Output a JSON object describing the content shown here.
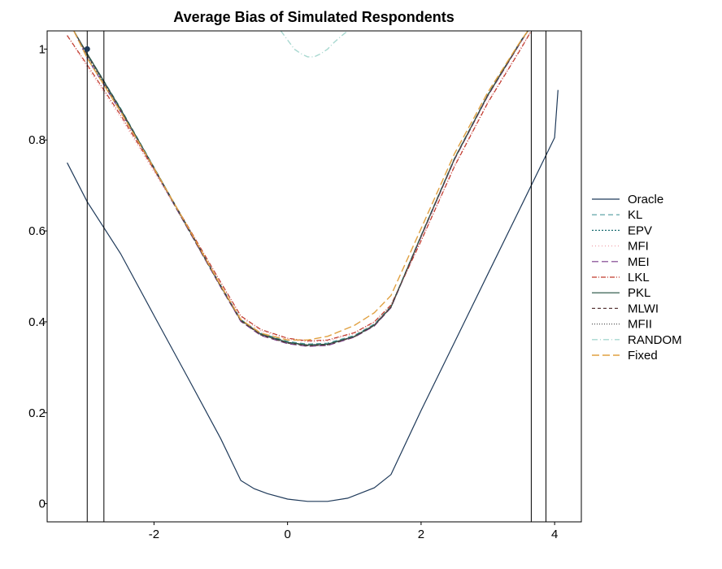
{
  "chart_data": {
    "type": "line",
    "title": "Average Bias of Simulated Respondents",
    "xlabel": "",
    "ylabel": "",
    "xlim": [
      -3.6,
      4.4
    ],
    "ylim": [
      -0.04,
      1.04
    ],
    "xticks": [
      {
        "value": -2,
        "label": "-2"
      },
      {
        "value": 0,
        "label": "0"
      },
      {
        "value": 2,
        "label": "2"
      },
      {
        "value": 4,
        "label": "4"
      }
    ],
    "yticks": [
      {
        "value": 0,
        "label": "0"
      },
      {
        "value": 0.2,
        "label": "0.2"
      },
      {
        "value": 0.4,
        "label": "0.4"
      },
      {
        "value": 0.6,
        "label": "0.6"
      },
      {
        "value": 0.8,
        "label": "0.8"
      },
      {
        "value": 1,
        "label": "1"
      }
    ],
    "grid": false,
    "legend_position": "right",
    "vlines": [
      -3.0,
      -2.75,
      3.65,
      3.87
    ],
    "marker": {
      "x": -3.0,
      "y": 1.0
    },
    "series": [
      {
        "name": "Oracle",
        "color": "#1f3a5a",
        "dash": "",
        "width": 1.2,
        "x": [
          -3.3,
          -3.0,
          -2.5,
          -2.0,
          -1.5,
          -1.0,
          -0.7,
          -0.5,
          -0.3,
          0.0,
          0.3,
          0.6,
          0.9,
          1.3,
          1.55,
          2.0,
          2.5,
          3.0,
          3.5,
          4.0,
          4.05
        ],
        "y": [
          0.75,
          0.664,
          0.55,
          0.414,
          0.279,
          0.143,
          0.051,
          0.033,
          0.022,
          0.01,
          0.005,
          0.005,
          0.012,
          0.035,
          0.064,
          0.205,
          0.355,
          0.505,
          0.655,
          0.805,
          0.91
        ]
      },
      {
        "name": "KL",
        "color": "#4f9a9e",
        "dash": "6,4",
        "width": 1.2,
        "x": [
          -3.2,
          -3.0,
          -2.5,
          -2.0,
          -1.5,
          -1.0,
          -0.7,
          -0.4,
          0.0,
          0.3,
          0.6,
          1.0,
          1.3,
          1.55,
          2.0,
          2.5,
          3.0,
          3.5,
          3.6
        ],
        "y": [
          1.04,
          0.99,
          0.87,
          0.74,
          0.61,
          0.48,
          0.405,
          0.375,
          0.357,
          0.351,
          0.353,
          0.37,
          0.395,
          0.434,
          0.59,
          0.76,
          0.9,
          1.02,
          1.04
        ]
      },
      {
        "name": "EPV",
        "color": "#1c6e73",
        "dash": "2,2",
        "width": 1.2,
        "x": [
          -3.2,
          -3.0,
          -2.5,
          -2.0,
          -1.5,
          -1.0,
          -0.7,
          -0.4,
          0.0,
          0.3,
          0.6,
          1.0,
          1.3,
          1.55,
          2.0,
          2.5,
          3.0,
          3.5,
          3.6
        ],
        "y": [
          1.04,
          0.985,
          0.865,
          0.738,
          0.608,
          0.478,
          0.403,
          0.372,
          0.354,
          0.348,
          0.35,
          0.367,
          0.392,
          0.432,
          0.588,
          0.758,
          0.898,
          1.018,
          1.04
        ]
      },
      {
        "name": "MFI",
        "color": "#f0a8b0",
        "dash": "1,3",
        "width": 1.4,
        "x": [
          -3.3,
          -3.0,
          -2.5,
          -2.0,
          -1.5,
          -1.0,
          -0.7,
          -0.4,
          0.0,
          0.3,
          0.6,
          1.0,
          1.3,
          1.55,
          2.0,
          2.5,
          3.0,
          3.5,
          3.65
        ],
        "y": [
          1.03,
          0.96,
          0.85,
          0.73,
          0.61,
          0.485,
          0.41,
          0.38,
          0.362,
          0.356,
          0.358,
          0.374,
          0.398,
          0.435,
          0.58,
          0.745,
          0.885,
          1.005,
          1.04
        ]
      },
      {
        "name": "MEI",
        "color": "#7a3a8a",
        "dash": "8,4",
        "width": 1.2,
        "x": [
          -3.2,
          -3.0,
          -2.5,
          -2.0,
          -1.5,
          -1.0,
          -0.7,
          -0.4,
          0.0,
          0.3,
          0.6,
          1.0,
          1.3,
          1.55,
          2.0,
          2.5,
          3.0,
          3.5,
          3.6
        ],
        "y": [
          1.04,
          0.98,
          0.862,
          0.736,
          0.606,
          0.476,
          0.401,
          0.37,
          0.352,
          0.346,
          0.348,
          0.366,
          0.391,
          0.431,
          0.587,
          0.757,
          0.897,
          1.017,
          1.04
        ]
      },
      {
        "name": "LKL",
        "color": "#c0392b",
        "dash": "6,2,1,2",
        "width": 1.2,
        "x": [
          -3.3,
          -3.0,
          -2.5,
          -2.0,
          -1.5,
          -1.0,
          -0.7,
          -0.4,
          0.0,
          0.3,
          0.6,
          1.0,
          1.3,
          1.55,
          2.0,
          2.5,
          3.0,
          3.5,
          3.65
        ],
        "y": [
          1.03,
          0.965,
          0.855,
          0.735,
          0.612,
          0.487,
          0.413,
          0.383,
          0.364,
          0.358,
          0.36,
          0.376,
          0.4,
          0.437,
          0.578,
          0.742,
          0.882,
          1.002,
          1.04
        ]
      },
      {
        "name": "PKL",
        "color": "#1f4e3d",
        "dash": "",
        "width": 1.2,
        "x": [
          -3.2,
          -3.0,
          -2.5,
          -2.0,
          -1.5,
          -1.0,
          -0.7,
          -0.4,
          0.0,
          0.3,
          0.6,
          1.0,
          1.3,
          1.55,
          2.0,
          2.5,
          3.0,
          3.5,
          3.6
        ],
        "y": [
          1.04,
          0.99,
          0.868,
          0.739,
          0.609,
          0.479,
          0.404,
          0.373,
          0.355,
          0.349,
          0.351,
          0.368,
          0.393,
          0.433,
          0.589,
          0.759,
          0.899,
          1.019,
          1.04
        ]
      },
      {
        "name": "MLWI",
        "color": "#5a3a3a",
        "dash": "4,3",
        "width": 1.2,
        "x": [
          -3.2,
          -3.0,
          -2.5,
          -2.0,
          -1.5,
          -1.0,
          -0.7,
          -0.4,
          0.0,
          0.3,
          0.6,
          1.0,
          1.3,
          1.55,
          2.0,
          2.5,
          3.0,
          3.5,
          3.6
        ],
        "y": [
          1.04,
          0.987,
          0.866,
          0.737,
          0.607,
          0.477,
          0.402,
          0.371,
          0.353,
          0.347,
          0.349,
          0.367,
          0.392,
          0.432,
          0.588,
          0.758,
          0.898,
          1.018,
          1.04
        ]
      },
      {
        "name": "MFII",
        "color": "#555555",
        "dash": "1,2",
        "width": 1.2,
        "x": [
          -3.2,
          -3.0,
          -2.5,
          -2.0,
          -1.5,
          -1.0,
          -0.7,
          -0.4,
          0.0,
          0.3,
          0.6,
          1.0,
          1.3,
          1.55,
          2.0,
          2.5,
          3.0,
          3.5,
          3.6
        ],
        "y": [
          1.04,
          0.988,
          0.867,
          0.738,
          0.608,
          0.478,
          0.403,
          0.372,
          0.354,
          0.348,
          0.35,
          0.367,
          0.392,
          0.432,
          0.588,
          0.758,
          0.898,
          1.018,
          1.04
        ]
      },
      {
        "name": "RANDOM",
        "color": "#a8d8d0",
        "dash": "7,3,1,3",
        "width": 1.4,
        "x": [
          -0.1,
          0.0,
          0.1,
          0.2,
          0.3,
          0.4,
          0.5,
          0.6,
          0.7,
          0.8,
          0.9
        ],
        "y": [
          1.04,
          1.02,
          1.0,
          0.99,
          0.983,
          0.983,
          0.99,
          1.0,
          1.015,
          1.028,
          1.04
        ]
      },
      {
        "name": "Fixed",
        "color": "#e0a040",
        "dash": "9,4",
        "width": 1.4,
        "x": [
          -3.2,
          -3.0,
          -2.5,
          -2.0,
          -1.5,
          -1.0,
          -0.7,
          -0.4,
          0.0,
          0.3,
          0.6,
          1.0,
          1.3,
          1.55,
          2.0,
          2.5,
          3.0,
          3.5,
          3.6
        ],
        "y": [
          1.04,
          0.98,
          0.862,
          0.738,
          0.61,
          0.48,
          0.405,
          0.375,
          0.36,
          0.36,
          0.368,
          0.392,
          0.42,
          0.458,
          0.605,
          0.77,
          0.905,
          1.02,
          1.04
        ]
      }
    ]
  }
}
